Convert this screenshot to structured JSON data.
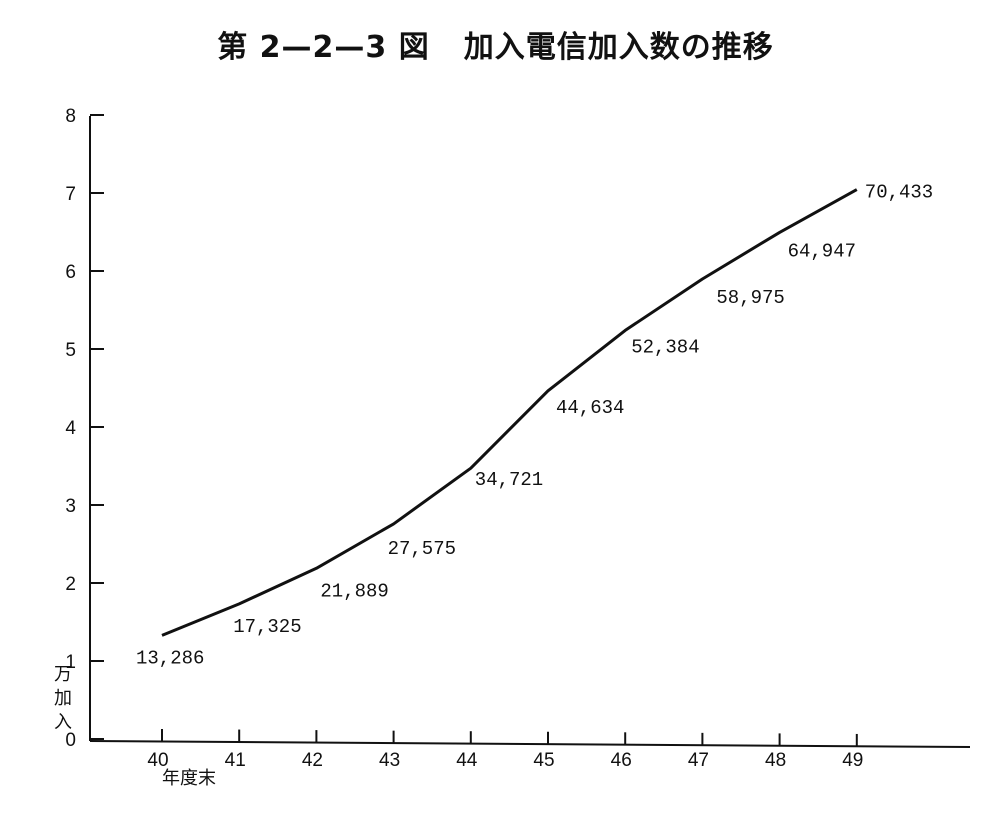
{
  "figure": {
    "number": "第 2—2—3 図",
    "caption": "加入電信加入数の推移"
  },
  "chart_data": {
    "type": "line",
    "title": "第 2—2—3 図　加入電信加入数の推移",
    "ylabel": "万加入",
    "xlabel": "年度末",
    "x": [
      "40",
      "41",
      "42",
      "43",
      "44",
      "45",
      "46",
      "47",
      "48",
      "49"
    ],
    "y_ticks": [
      "0",
      "1",
      "2",
      "3",
      "4",
      "5",
      "6",
      "7",
      "8"
    ],
    "ylim": [
      0,
      8
    ],
    "grid": false,
    "series": [
      {
        "values": [
          13286,
          17325,
          21889,
          27575,
          34721,
          44634,
          52384,
          58975,
          64947,
          70433
        ],
        "labels": [
          "13,286",
          "17,325",
          "21,889",
          "27,575",
          "34,721",
          "44,634",
          "52,384",
          "58,975",
          "64,947",
          "70,433"
        ]
      }
    ],
    "y_unit_divisor": 10000
  }
}
